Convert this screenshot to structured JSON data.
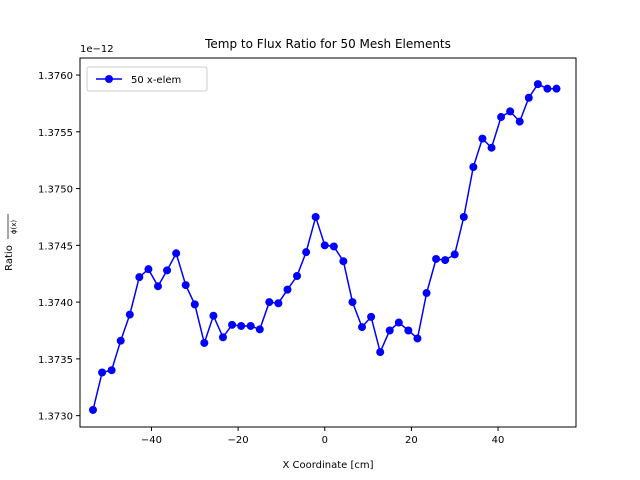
{
  "chart_data": {
    "type": "line",
    "title": "Temp to Flux Ratio for 50 Mesh Elements",
    "xlabel": "X Coordinate [cm]",
    "ylabel": "Ratio",
    "ylabel_fraction_denominator": "ϕ(x)",
    "y_offset_label": "1e−12",
    "xlim": [
      -56.5,
      58.0
    ],
    "ylim": [
      1.3729,
      1.37615
    ],
    "x_ticks": [
      -40,
      -20,
      0,
      20,
      40
    ],
    "x_tick_labels": [
      "−40",
      "−20",
      "0",
      "20",
      "40"
    ],
    "y_ticks": [
      1.373,
      1.3735,
      1.374,
      1.3745,
      1.375,
      1.3755,
      1.376
    ],
    "y_tick_labels": [
      "1.3730",
      "1.3735",
      "1.3740",
      "1.3745",
      "1.3750",
      "1.3755",
      "1.3760"
    ],
    "grid": false,
    "legend_position": "top-left",
    "series": [
      {
        "name": "50 x-elem",
        "color": "#0000ff",
        "marker": "circle",
        "x": [
          -53.5,
          -51.4,
          -49.2,
          -47.1,
          -45.0,
          -42.8,
          -40.7,
          -38.5,
          -36.4,
          -34.3,
          -32.1,
          -30.0,
          -27.8,
          -25.7,
          -23.5,
          -21.4,
          -19.3,
          -17.1,
          -15.0,
          -12.8,
          -10.7,
          -8.6,
          -6.4,
          -4.3,
          -2.1,
          0.0,
          2.1,
          4.3,
          6.4,
          8.6,
          10.7,
          12.8,
          15.0,
          17.1,
          19.3,
          21.4,
          23.5,
          25.7,
          27.8,
          30.0,
          32.1,
          34.3,
          36.4,
          38.5,
          40.7,
          42.8,
          45.0,
          47.1,
          49.2,
          51.4,
          53.5
        ],
        "y": [
          1.37305,
          1.37338,
          1.3734,
          1.37366,
          1.37389,
          1.37422,
          1.37429,
          1.37414,
          1.37428,
          1.37443,
          1.37415,
          1.37398,
          1.37364,
          1.37388,
          1.37369,
          1.3738,
          1.37379,
          1.37379,
          1.37376,
          1.374,
          1.37399,
          1.37411,
          1.37423,
          1.37444,
          1.37475,
          1.3745,
          1.37449,
          1.37436,
          1.374,
          1.37378,
          1.37387,
          1.37356,
          1.37375,
          1.37382,
          1.37375,
          1.37368,
          1.37408,
          1.37438,
          1.37437,
          1.37442,
          1.37475,
          1.37519,
          1.37544,
          1.37536,
          1.37563,
          1.37568,
          1.37559,
          1.3758,
          1.37592,
          1.37588,
          1.37588
        ]
      }
    ]
  }
}
